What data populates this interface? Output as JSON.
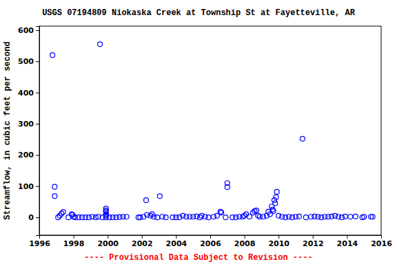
{
  "chart_data": {
    "type": "scatter",
    "title": "USGS 07194809 Niokaska Creek at Township St at Fayetteville, AR",
    "y_label": "Streamflow, in cubic feet per second",
    "annotation": "---- Provisional Data Subject to Revision ----",
    "color": "#0000ff",
    "marker": "circle",
    "grid": false,
    "xlim": [
      1996,
      2016
    ],
    "xticks": [
      1996,
      1998,
      2000,
      2002,
      2004,
      2006,
      2008,
      2010,
      2012,
      2014,
      2016
    ],
    "ylim": [
      -57,
      613
    ],
    "yticks": [
      0,
      100,
      200,
      300,
      400,
      500,
      600
    ],
    "x": [
      1996.77,
      1996.9,
      1996.9,
      1997.1,
      1997.2,
      1997.3,
      1997.4,
      1997.7,
      1997.9,
      1997.95,
      1998.0,
      1998.1,
      1998.3,
      1998.5,
      1998.7,
      1998.9,
      1999.1,
      1999.3,
      1999.45,
      1999.55,
      1999.7,
      1999.9,
      1999.9,
      1999.9,
      1999.9,
      1999.9,
      1999.9,
      2000.1,
      2000.3,
      2000.5,
      2000.7,
      2000.9,
      2001.1,
      2001.8,
      2001.9,
      2002.1,
      2002.25,
      2002.3,
      2002.5,
      2002.6,
      2002.7,
      2002.9,
      2003.05,
      2003.2,
      2003.4,
      2003.8,
      2004.0,
      2004.2,
      2004.4,
      2004.6,
      2004.8,
      2005.0,
      2005.2,
      2005.4,
      2005.5,
      2005.7,
      2005.9,
      2006.2,
      2006.4,
      2006.6,
      2006.65,
      2006.9,
      2007.0,
      2007.0,
      2007.3,
      2007.5,
      2007.7,
      2007.9,
      2008.0,
      2008.1,
      2008.3,
      2008.5,
      2008.6,
      2008.7,
      2008.8,
      2008.9,
      2009.1,
      2009.3,
      2009.4,
      2009.5,
      2009.6,
      2009.65,
      2009.7,
      2009.75,
      2009.8,
      2009.85,
      2009.9,
      2010.0,
      2010.2,
      2010.4,
      2010.6,
      2010.8,
      2011.0,
      2011.2,
      2011.4,
      2011.6,
      2011.9,
      2012.1,
      2012.3,
      2012.5,
      2012.7,
      2012.9,
      2013.1,
      2013.3,
      2013.5,
      2013.7,
      2013.9,
      2014.2,
      2014.5,
      2014.9,
      2015.0,
      2015.4,
      2015.5
    ],
    "values": [
      520,
      98,
      68,
      0,
      5,
      12,
      17,
      0,
      10,
      8,
      2,
      0,
      0,
      0,
      0,
      0,
      2,
      0,
      2,
      555,
      0,
      28,
      22,
      18,
      10,
      5,
      0,
      0,
      0,
      0,
      1,
      2,
      2,
      0,
      0,
      2,
      55,
      8,
      5,
      10,
      2,
      0,
      68,
      2,
      0,
      0,
      0,
      0,
      5,
      2,
      2,
      2,
      3,
      0,
      5,
      2,
      0,
      2,
      5,
      18,
      15,
      0,
      110,
      97,
      0,
      0,
      2,
      2,
      5,
      10,
      2,
      15,
      20,
      22,
      5,
      2,
      2,
      5,
      18,
      10,
      35,
      25,
      20,
      55,
      45,
      65,
      82,
      5,
      2,
      0,
      2,
      0,
      2,
      3,
      252,
      0,
      2,
      3,
      2,
      0,
      2,
      2,
      3,
      5,
      2,
      0,
      3,
      2,
      3,
      0,
      2,
      2,
      2
    ]
  }
}
